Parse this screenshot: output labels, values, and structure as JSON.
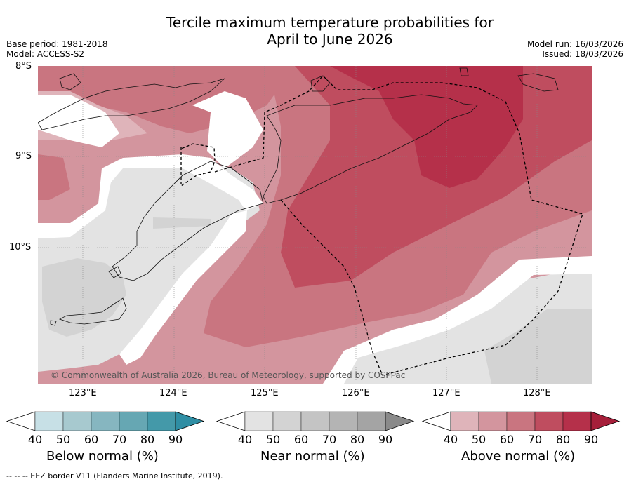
{
  "title_line1": "Tercile maximum temperature probabilities for",
  "title_line2": "April to June 2026",
  "base_period": "Base period: 1981-2018",
  "model": "Model: ACCESS-S2",
  "model_run": "Model run: 16/03/2026",
  "issued": "Issued: 18/03/2026",
  "lat_labels": [
    "8°S",
    "9°S",
    "10°S"
  ],
  "lon_labels": [
    "123°E",
    "124°E",
    "125°E",
    "126°E",
    "127°E",
    "128°E"
  ],
  "copyright": "© Commonwealth of Australia 2026, Bureau of Meteorology, supported by COSPPac",
  "colorbars": [
    {
      "label": "Below normal (%)",
      "ticks": [
        "40",
        "50",
        "60",
        "70",
        "80",
        "90"
      ],
      "colors": [
        "#ffffff",
        "#c7e0e6",
        "#a7c9cf",
        "#86b6c0",
        "#66a7b3",
        "#4499a9",
        "#2f8ea4"
      ]
    },
    {
      "label": "Near normal (%)",
      "ticks": [
        "40",
        "50",
        "60",
        "70",
        "80",
        "90"
      ],
      "colors": [
        "#ffffff",
        "#e3e3e3",
        "#d3d3d3",
        "#c4c4c4",
        "#b4b4b4",
        "#a4a4a4",
        "#8a8a8a"
      ]
    },
    {
      "label": "Above normal (%)",
      "ticks": [
        "40",
        "50",
        "60",
        "70",
        "80",
        "90"
      ],
      "colors": [
        "#ffffff",
        "#dfb4ba",
        "#d3959e",
        "#c97580",
        "#bf4d5f",
        "#b5304a",
        "#a61f3a"
      ]
    }
  ],
  "footer": "-- -- -- EEZ border V11 (Flanders Marine Institute, 2019).",
  "colors": {
    "above_40": "#dfb4ba",
    "above_50": "#d3959e",
    "above_60": "#c97580",
    "above_70": "#bf4d5f",
    "above_80": "#b5304a",
    "near_40": "#e3e3e3",
    "near_50": "#d3d3d3"
  }
}
